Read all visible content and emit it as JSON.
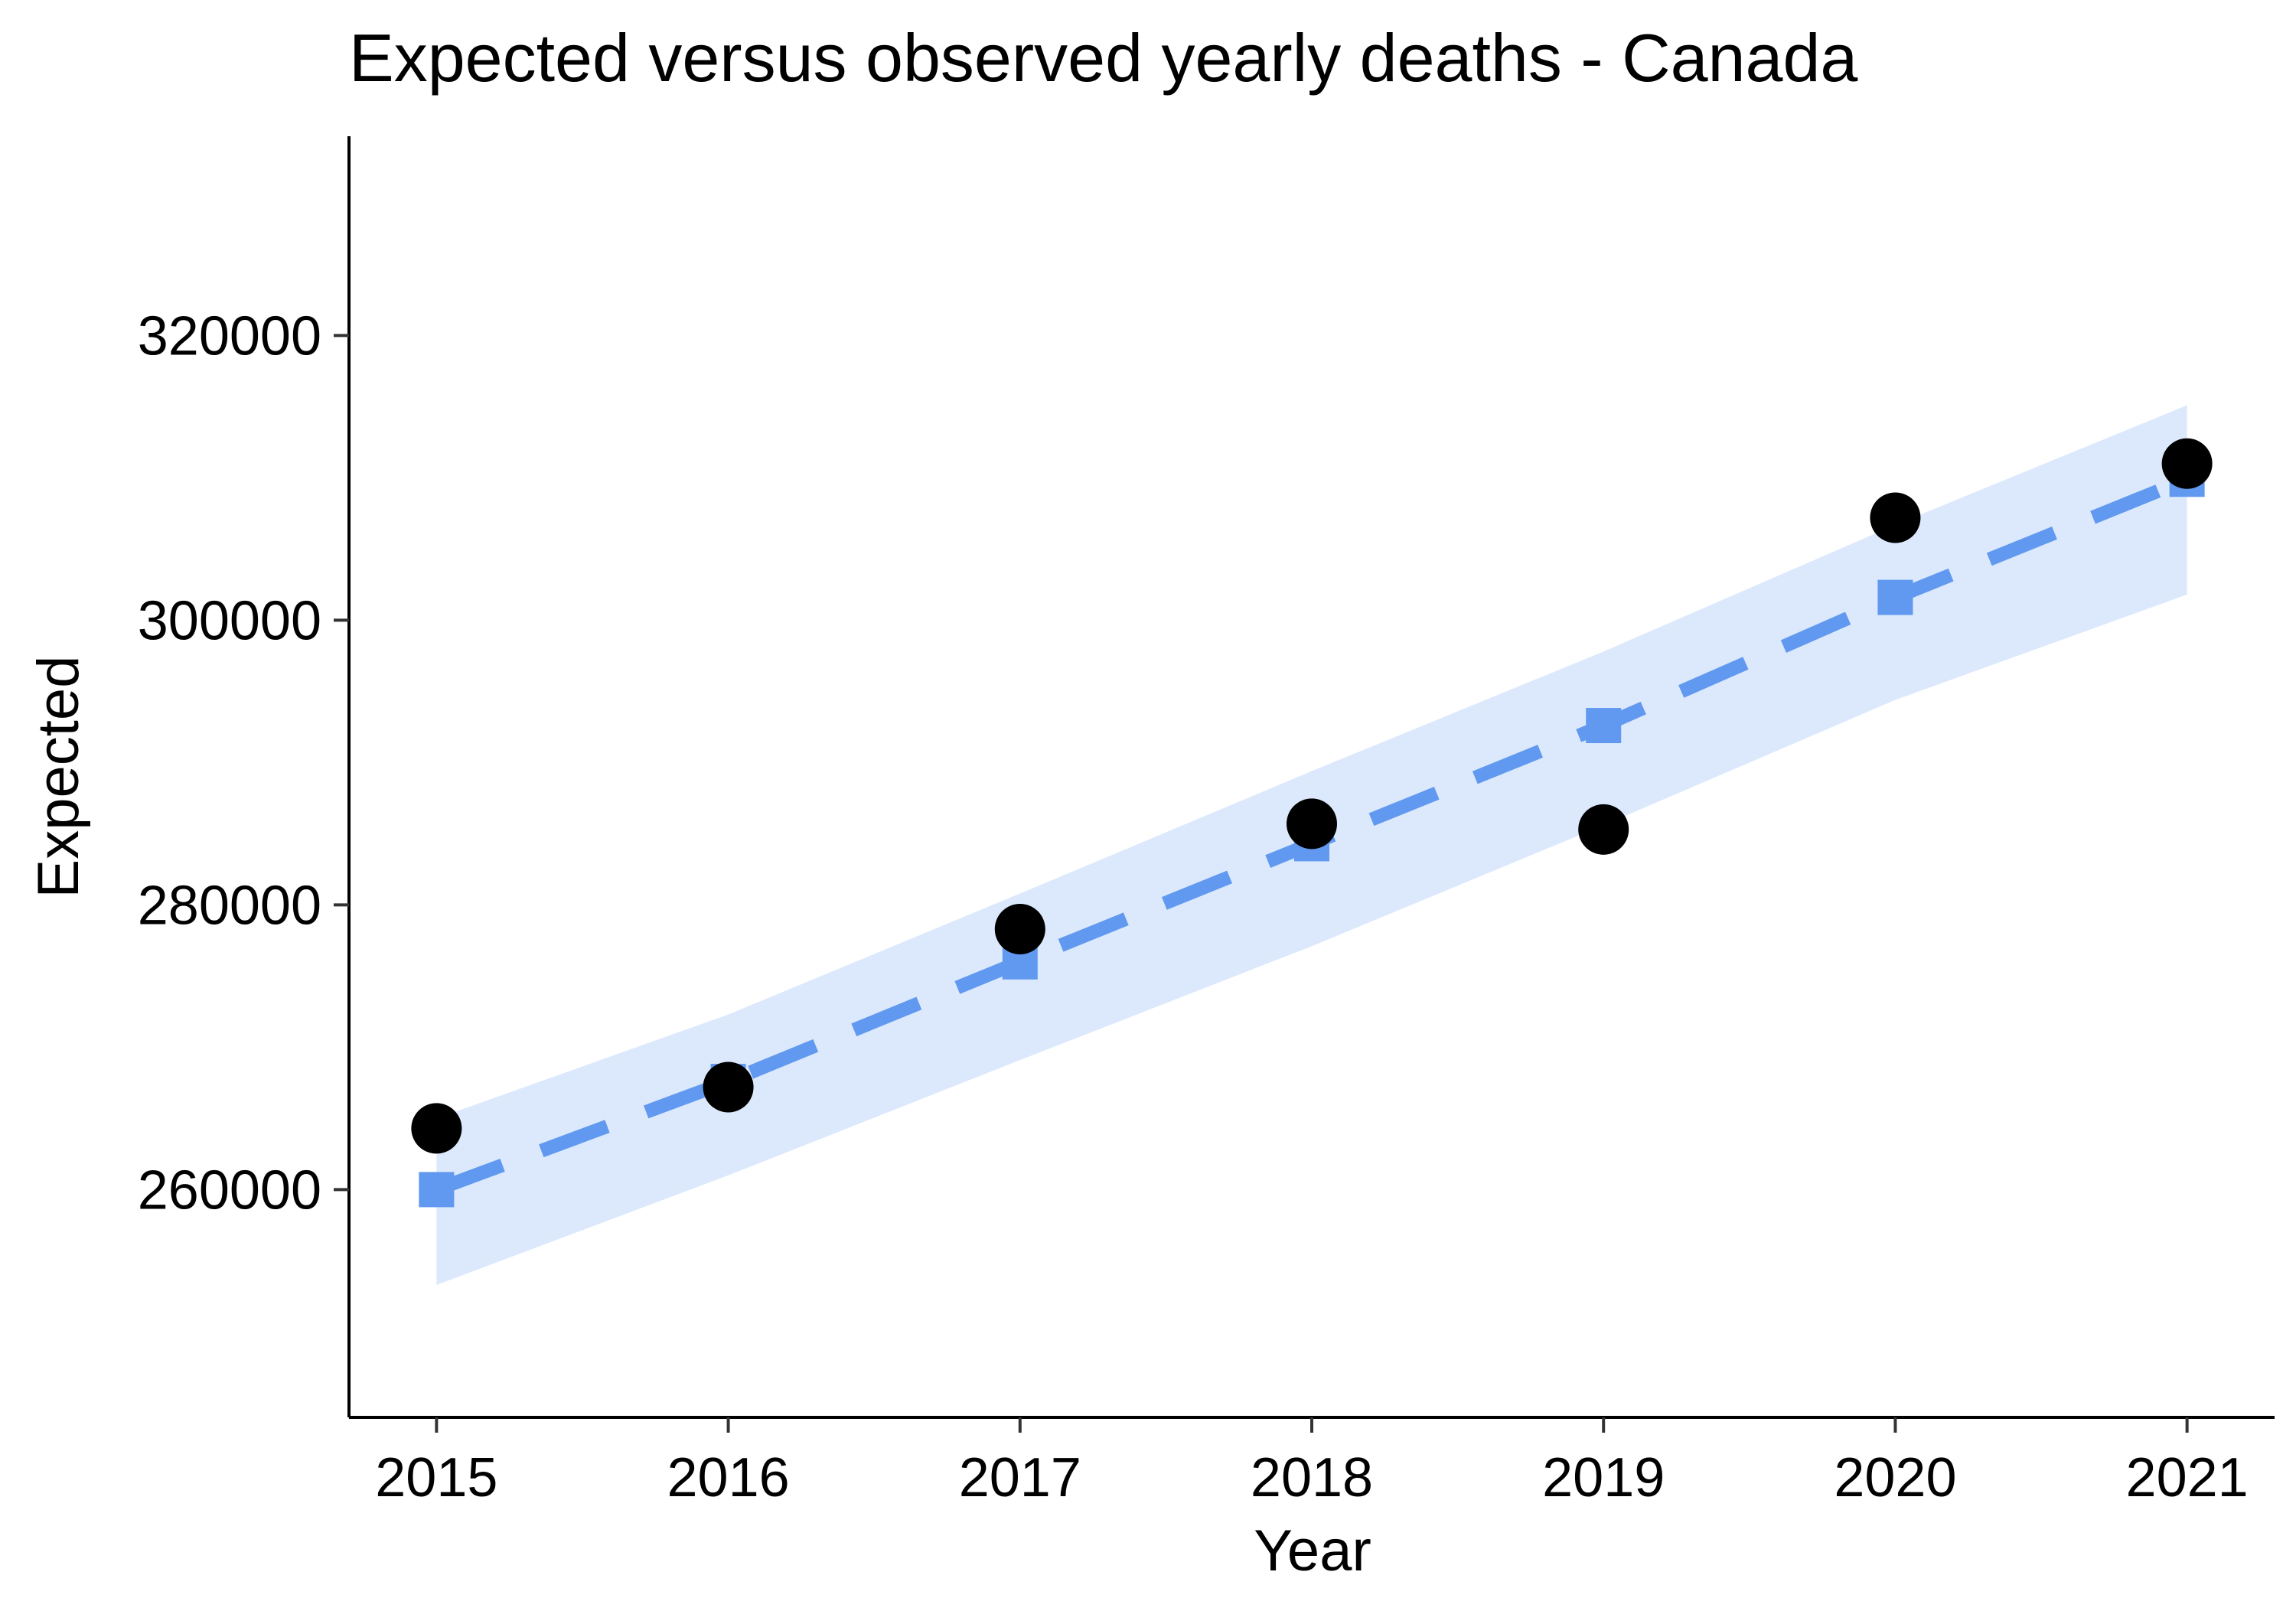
{
  "chart_data": {
    "type": "line",
    "title": "Expected versus observed yearly deaths - Canada",
    "xlabel": "Year",
    "ylabel": "Expected",
    "x": [
      2015,
      2016,
      2017,
      2018,
      2019,
      2020,
      2021
    ],
    "x_tick_labels": [
      "2015",
      "2016",
      "2017",
      "2018",
      "2019",
      "2020",
      "2021"
    ],
    "y_ticks": [
      260000,
      280000,
      300000,
      320000
    ],
    "y_tick_labels": [
      "260000",
      "280000",
      "300000",
      "320000"
    ],
    "xlim": [
      2014.7,
      2021.3
    ],
    "ylim": [
      244000,
      334000
    ],
    "grid": false,
    "legend": "none",
    "series": [
      {
        "kind": "line-with-markers",
        "style": "dashed",
        "marker": "square",
        "color": "#6199F0",
        "values": [
          260000,
          267600,
          276000,
          284300,
          292600,
          301600,
          309900
        ]
      },
      {
        "kind": "interval-band",
        "color": "#DCE9FC",
        "lower": [
          253300,
          261000,
          269100,
          277100,
          285600,
          294400,
          301800
        ],
        "upper": [
          265000,
          272300,
          280800,
          289400,
          297800,
          306700,
          315100
        ]
      },
      {
        "kind": "points",
        "marker": "circle",
        "color": "#000000",
        "values": [
          264300,
          267200,
          278300,
          285700,
          285300,
          307200,
          311000
        ]
      }
    ]
  }
}
